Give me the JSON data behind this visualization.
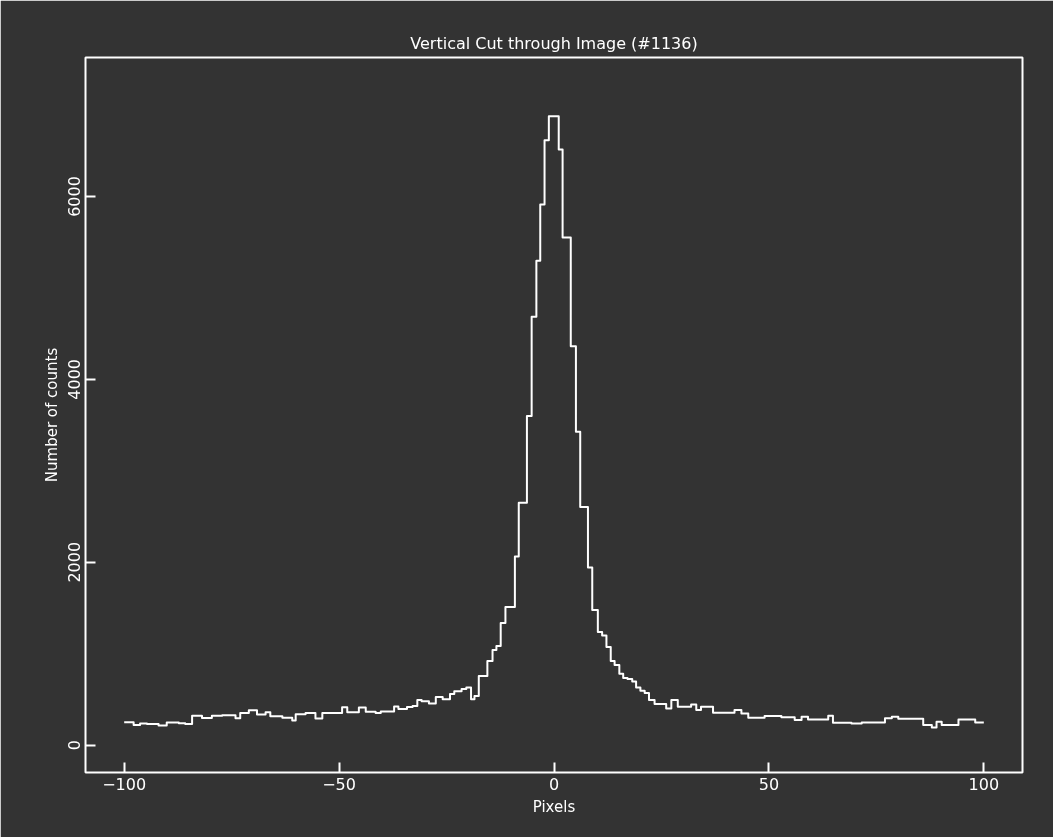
{
  "chart_data": {
    "type": "step",
    "title": "Vertical Cut through Image (#1136)",
    "xlabel": "Pixels",
    "ylabel": "Number of counts",
    "xlim": [
      -109,
      109
    ],
    "ylim": [
      -300,
      7520
    ],
    "xticks": [
      -100,
      -50,
      0,
      50,
      100
    ],
    "yticks": [
      0,
      2000,
      4000,
      6000
    ],
    "grid": false,
    "series": [
      {
        "color": "#ffffff",
        "x": [
          -100,
          -97.8,
          -96.3,
          -94.7,
          -92,
          -90.1,
          -87.3,
          -85.8,
          -84.2,
          -81.9,
          -79.6,
          -77.2,
          -74.1,
          -73,
          -71,
          -69.1,
          -67.1,
          -66,
          -63.2,
          -60.9,
          -60.1,
          -57.8,
          -55.5,
          -53.9,
          -49.3,
          -48.1,
          -45.4,
          -43.8,
          -41.5,
          -40.3,
          -37.2,
          -36.2,
          -34.2,
          -32.9,
          -31.8,
          -30.8,
          -29.1,
          -27.5,
          -25.9,
          -24.2,
          -23.2,
          -21.5,
          -20.4,
          -19.3,
          -18.5,
          -17.5,
          -15.5,
          -14.3,
          -13.4,
          -12.4,
          -11.3,
          -9.1,
          -8.2,
          -6.3,
          -5.2,
          -4.1,
          -3.2,
          -2.2,
          -1.2,
          1.1,
          2,
          3.9,
          5.1,
          6.1,
          7.9,
          8.9,
          10.2,
          11.2,
          12.2,
          13.2,
          14.1,
          15.2,
          16.1,
          17.1,
          18.2,
          19.1,
          20.1,
          21.1,
          22.1,
          23.4,
          26.1,
          27.3,
          28.8,
          31.9,
          33.1,
          34.2,
          37,
          42,
          43.6,
          45.2,
          49,
          52.9,
          56,
          57.6,
          59.1,
          63.8,
          64.9,
          69.2,
          71.6,
          77,
          78.6,
          80.1,
          85.9,
          87.9,
          89,
          90.2,
          94.1,
          98,
          100
        ],
        "values": [
          250,
          220,
          237,
          230,
          215,
          248,
          240,
          230,
          322,
          297,
          322,
          326,
          293,
          350,
          380,
          333,
          358,
          315,
          300,
          268,
          337,
          350,
          290,
          350,
          415,
          358,
          410,
          364,
          350,
          368,
          423,
          394,
          416,
          427,
          492,
          480,
          454,
          525,
          500,
          558,
          590,
          613,
          630,
          500,
          536,
          755,
          920,
          1040,
          1084,
          1335,
          1510,
          2063,
          2650,
          3600,
          4685,
          5298,
          5911,
          6616,
          6878,
          6515,
          5550,
          4362,
          3426,
          2605,
          1943,
          1478,
          1237,
          1199,
          1073,
          920,
          876,
          780,
          733,
          722,
          695,
          630,
          594,
          569,
          492,
          448,
          401,
          492,
          419,
          445,
          383,
          419,
          353,
          383,
          346,
          299,
          317,
          303,
          273,
          310,
          281,
          320,
          244,
          237,
          248,
          292,
          310,
          288,
          219,
          193,
          255,
          219,
          281,
          248,
          248
        ]
      }
    ]
  }
}
